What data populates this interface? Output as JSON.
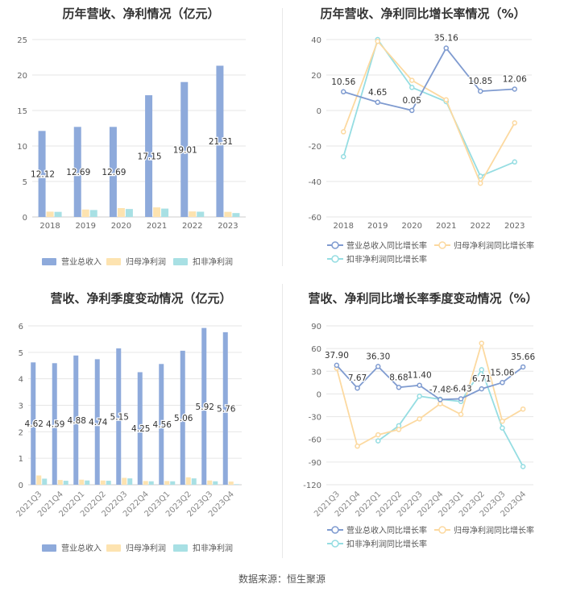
{
  "footer": "数据来源：恒生聚源",
  "colors": {
    "revenue": "#8eaadb",
    "netprofit": "#fde3b0",
    "deducted": "#a8e0e4",
    "line1": "#7f9bd0",
    "line2": "#fcd9a0",
    "line3": "#95dde2"
  },
  "chart_data": [
    {
      "type": "bar",
      "title": "历年营收、净利情况（亿元）",
      "categories": [
        "2018",
        "2019",
        "2020",
        "2021",
        "2022",
        "2023"
      ],
      "ylim": [
        0,
        25
      ],
      "yticks": [
        0,
        5,
        10,
        15,
        20,
        25
      ],
      "series": [
        {
          "name": "营业总收入",
          "values": [
            12.12,
            12.69,
            12.69,
            17.15,
            19.01,
            21.31
          ],
          "labels": [
            "12.12",
            "12.69",
            "12.69",
            "17.15",
            "19.01",
            "21.31"
          ]
        },
        {
          "name": "归母净利润",
          "values": [
            0.75,
            1.05,
            1.25,
            1.35,
            0.78,
            0.72
          ]
        },
        {
          "name": "扣非净利润",
          "values": [
            0.72,
            0.98,
            1.12,
            1.18,
            0.74,
            0.55
          ]
        }
      ],
      "legend_position": "bottom"
    },
    {
      "type": "line",
      "title": "历年营收、净利同比增长率情况（%）",
      "categories": [
        "2018",
        "2019",
        "2020",
        "2021",
        "2022",
        "2023"
      ],
      "ylim": [
        -60,
        40
      ],
      "yticks": [
        -60,
        -40,
        -20,
        0,
        20,
        40
      ],
      "series": [
        {
          "name": "营业总收入同比增长率",
          "values": [
            10.56,
            4.65,
            0.05,
            35.16,
            10.85,
            12.06
          ],
          "labels": [
            "10.56",
            "4.65",
            "0.05",
            "35.16",
            "10.85",
            "12.06"
          ]
        },
        {
          "name": "归母净利润同比增长率",
          "values": [
            -12,
            39,
            17,
            6,
            -41,
            -7
          ]
        },
        {
          "name": "扣非净利润同比增长率",
          "values": [
            -26,
            40,
            13,
            5,
            -37,
            -29
          ]
        }
      ],
      "legend_position": "bottom"
    },
    {
      "type": "bar",
      "title": "营收、净利季度变动情况（亿元）",
      "categories": [
        "2021Q3",
        "2021Q4",
        "2022Q1",
        "2022Q2",
        "2022Q3",
        "2022Q4",
        "2023Q1",
        "2023Q2",
        "2023Q3",
        "2023Q4"
      ],
      "ylim": [
        0,
        6
      ],
      "yticks": [
        0,
        1,
        2,
        3,
        4,
        5,
        6
      ],
      "series": [
        {
          "name": "营业总收入",
          "values": [
            4.62,
            4.59,
            4.88,
            4.74,
            5.15,
            4.25,
            4.56,
            5.06,
            5.92,
            5.76
          ],
          "labels": [
            "4.62",
            "4.59",
            "4.88",
            "4.74",
            "5.15",
            "4.25",
            "4.56",
            "5.06",
            "5.92",
            "5.76"
          ]
        },
        {
          "name": "归母净利润",
          "values": [
            0.35,
            0.18,
            0.19,
            0.16,
            0.26,
            0.14,
            0.14,
            0.28,
            0.16,
            0.12
          ]
        },
        {
          "name": "扣非净利润",
          "values": [
            0.23,
            0.15,
            0.16,
            0.15,
            0.24,
            0.13,
            0.13,
            0.24,
            0.13,
            0.02
          ]
        }
      ],
      "legend_position": "bottom"
    },
    {
      "type": "line",
      "title": "营收、净利同比增长率季度变动情况（%）",
      "categories": [
        "2021Q3",
        "2021Q4",
        "2022Q1",
        "2022Q2",
        "2022Q3",
        "2022Q4",
        "2023Q1",
        "2023Q2",
        "2023Q3",
        "2023Q4"
      ],
      "ylim": [
        -120,
        90
      ],
      "yticks": [
        -120,
        -90,
        -60,
        -30,
        0,
        30,
        60,
        90
      ],
      "series": [
        {
          "name": "营业总收入同比增长率",
          "values": [
            37.9,
            7.67,
            36.3,
            8.68,
            11.4,
            -7.48,
            -6.43,
            6.71,
            15.06,
            35.66
          ],
          "labels": [
            "37.90",
            "7.67",
            "36.30",
            "8.68",
            "11.40",
            "-7.48",
            "-6.43",
            "6.71",
            "15.06",
            "35.66"
          ]
        },
        {
          "name": "归母净利润同比增长率",
          "values": [
            34,
            -69,
            -54,
            -47,
            -33,
            -13,
            -27,
            67,
            -36,
            -20
          ]
        },
        {
          "name": "扣非净利润同比增长率",
          "values": [
            null,
            null,
            -62,
            -42,
            -3,
            -7,
            -10,
            32,
            -45,
            -96
          ]
        }
      ],
      "legend_position": "bottom"
    }
  ]
}
